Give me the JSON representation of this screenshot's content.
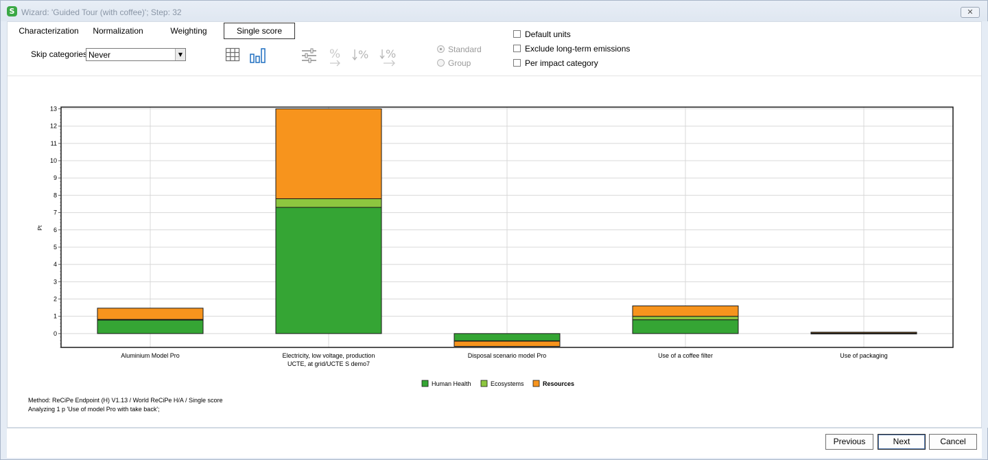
{
  "window": {
    "title": "Wizard: 'Guided Tour (with coffee)';   Step: 32",
    "close_glyph": "✕"
  },
  "tabs": [
    {
      "label": "Characterization"
    },
    {
      "label": "Normalization"
    },
    {
      "label": "Weighting"
    },
    {
      "label": "Single score"
    }
  ],
  "skip": {
    "label": "Skip categories",
    "value": "Never"
  },
  "view_tools": [
    "table-view-icon",
    "bar-chart-view-icon"
  ],
  "disabled_tools": [
    "settings-sliders-icon",
    "percent-icon",
    "sort-percent-icon",
    "sort-percent-descending-icon"
  ],
  "radios": [
    {
      "label": "Standard",
      "selected": true
    },
    {
      "label": "Group",
      "selected": false
    }
  ],
  "checkboxes": [
    {
      "label": "Default units",
      "checked": false
    },
    {
      "label": "Exclude long-term emissions",
      "checked": false
    },
    {
      "label": "Per impact category",
      "checked": false
    }
  ],
  "chart_data": {
    "type": "bar",
    "stacked": true,
    "ylabel": "Pt",
    "ylim": [
      -0.8,
      13.1
    ],
    "yticks": [
      0,
      1,
      2,
      3,
      4,
      5,
      6,
      7,
      8,
      9,
      10,
      11,
      12,
      13
    ],
    "grid": true,
    "legend_position": "bottom",
    "categories": [
      "Aluminium Model Pro",
      "Electricity, low voltage, production UCTE, at grid/UCTE S demo7",
      "Disposal scenario model Pro",
      "Use of a coffee filter",
      "Use of packaging"
    ],
    "series": [
      {
        "name": "Human Health",
        "color": "#35a534",
        "values": [
          0.8,
          7.3,
          -0.42,
          0.8,
          0.02
        ]
      },
      {
        "name": "Ecosystems",
        "color": "#8dc63f",
        "values": [
          0.02,
          0.5,
          -0.02,
          0.2,
          0.01
        ]
      },
      {
        "name": "Resources",
        "color": "#f7941d",
        "values": [
          0.65,
          5.2,
          -0.3,
          0.6,
          0.05
        ]
      }
    ]
  },
  "method_text": "Method: ReCiPe Endpoint (H) V1.13 / World ReCiPe H/A / Single score",
  "analyzing_text": "Analyzing 1 p 'Use of model Pro with take back';",
  "buttons": {
    "previous": "Previous",
    "next": "Next",
    "cancel": "Cancel"
  }
}
